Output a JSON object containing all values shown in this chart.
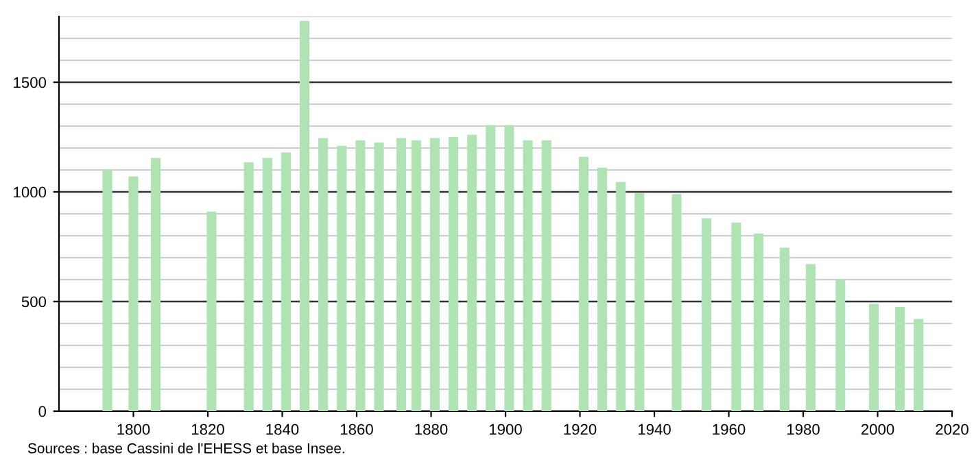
{
  "chart_data": {
    "type": "bar",
    "x": [
      1793,
      1800,
      1806,
      1821,
      1831,
      1836,
      1841,
      1846,
      1851,
      1856,
      1861,
      1866,
      1872,
      1876,
      1881,
      1886,
      1891,
      1896,
      1901,
      1906,
      1911,
      1921,
      1926,
      1931,
      1936,
      1946,
      1954,
      1962,
      1968,
      1975,
      1982,
      1990,
      1999,
      2006,
      2011
    ],
    "values": [
      1100,
      1070,
      1155,
      910,
      1135,
      1155,
      1180,
      1780,
      1245,
      1210,
      1235,
      1225,
      1245,
      1235,
      1245,
      1250,
      1260,
      1305,
      1305,
      1235,
      1235,
      1160,
      1110,
      1045,
      995,
      990,
      880,
      860,
      810,
      745,
      670,
      600,
      490,
      475,
      420
    ],
    "color": "#b0e3b4",
    "xlim": [
      1780,
      2020
    ],
    "xticks": [
      1800,
      1820,
      1840,
      1860,
      1880,
      1900,
      1920,
      1940,
      1960,
      1980,
      2000,
      2020
    ],
    "ylim": [
      0,
      1800
    ],
    "yticks": [
      0,
      500,
      1000,
      1500
    ],
    "grid": "y",
    "annotations": [
      "Sources : base Cassini de l'EHESS et base Insee."
    ]
  }
}
